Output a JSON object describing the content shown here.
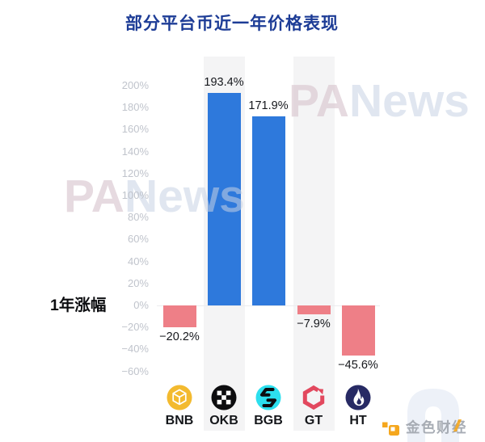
{
  "title": "部分平台币近一年价格表现",
  "title_color": "#1d3c96",
  "row_label": "1年涨幅",
  "watermarks": {
    "panews_pa": "PA",
    "panews_news": "News",
    "jinse_text": "金色财经",
    "jinse_accent_color": "#f5a71e"
  },
  "chart_data": {
    "type": "bar",
    "title": "部分平台币近一年价格表现",
    "series_label": "1年涨幅",
    "categories": [
      "BNB",
      "OKB",
      "BGB",
      "GT",
      "HT"
    ],
    "values": [
      -20.2,
      193.4,
      171.9,
      -7.9,
      -45.6
    ],
    "value_labels": [
      "−20.2%",
      "193.4%",
      "171.9%",
      "−7.9%",
      "−45.6%"
    ],
    "y_ticks": [
      "200%",
      "180%",
      "160%",
      "140%",
      "120%",
      "100%",
      "80%",
      "60%",
      "40%",
      "20%",
      "0%",
      "−20%",
      "−40%",
      "−60%"
    ],
    "ylim": [
      -60,
      200
    ],
    "tick_step": 20,
    "grid": false,
    "legend": "none",
    "positive_color": "#2e79dc",
    "negative_color": "#ee7f87",
    "band_color": "#f4f4f5",
    "band_columns": [
      "OKB",
      "GT"
    ]
  },
  "icons": [
    {
      "name": "bnb-icon",
      "bg": "#f3ba2f"
    },
    {
      "name": "okb-icon",
      "bg": "#0d0d0f"
    },
    {
      "name": "bgb-icon",
      "bg": "#2cdfee"
    },
    {
      "name": "gt-icon",
      "bg": "#e2485e"
    },
    {
      "name": "ht-icon",
      "bg": "#272a64"
    }
  ]
}
